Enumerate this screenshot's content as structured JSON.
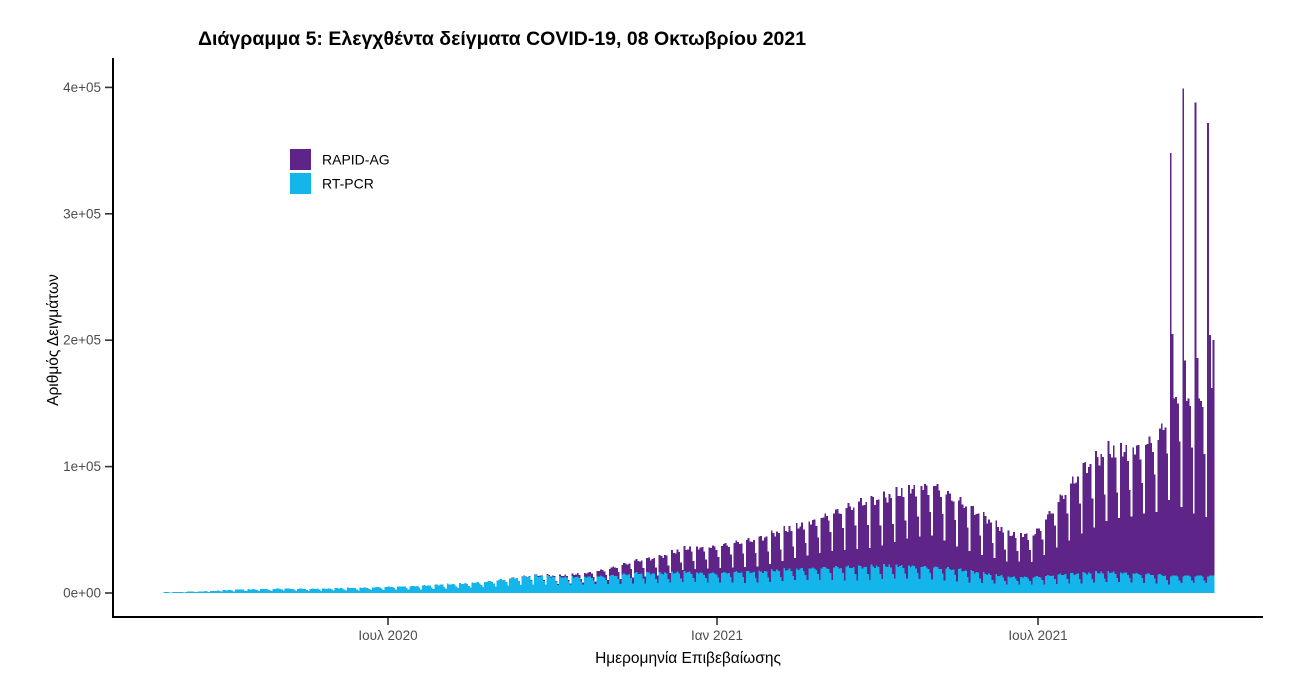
{
  "chart_data": {
    "type": "bar",
    "stacked": true,
    "title": "Διάγραμμα 5: Ελεγχθέντα δείγματα COVID-19, 08 Οκτωβρίου 2021",
    "xlabel": "Ημερομηνία Επιβεβαίωσης",
    "ylabel": "Αριθμός Δειγμάτων",
    "x_ticks": [
      "Ιουλ 2020",
      "Ιαν 2021",
      "Ιουλ 2021"
    ],
    "y_ticks": [
      "0e+00",
      "1e+05",
      "2e+05",
      "3e+05",
      "4e+05"
    ],
    "ylim": [
      0,
      400000
    ],
    "x_range": [
      "2020-02-26",
      "2021-10-07"
    ],
    "grid": false,
    "background": "#ffffff",
    "legend_position": "inside-top-left",
    "series": [
      {
        "name": "RAPID-AG",
        "color": "#5E2487"
      },
      {
        "name": "RT-PCR",
        "color": "#13B5EA"
      }
    ],
    "weekday_factors": [
      0.5,
      1.0,
      0.98,
      0.96,
      0.97,
      0.93,
      0.72
    ],
    "jitter": 0.05,
    "weekly_baseline": [
      {
        "date": "2020-02-24",
        "rt_pcr": 600,
        "rapid_ag": 0
      },
      {
        "date": "2020-03-09",
        "rt_pcr": 1000,
        "rapid_ag": 0
      },
      {
        "date": "2020-03-23",
        "rt_pcr": 1600,
        "rapid_ag": 0
      },
      {
        "date": "2020-04-06",
        "rt_pcr": 2800,
        "rapid_ag": 0
      },
      {
        "date": "2020-04-20",
        "rt_pcr": 3200,
        "rapid_ag": 0
      },
      {
        "date": "2020-05-04",
        "rt_pcr": 3600,
        "rapid_ag": 0
      },
      {
        "date": "2020-05-18",
        "rt_pcr": 3400,
        "rapid_ag": 0
      },
      {
        "date": "2020-06-01",
        "rt_pcr": 3800,
        "rapid_ag": 0
      },
      {
        "date": "2020-06-15",
        "rt_pcr": 4200,
        "rapid_ag": 0
      },
      {
        "date": "2020-06-29",
        "rt_pcr": 5000,
        "rapid_ag": 0
      },
      {
        "date": "2020-07-13",
        "rt_pcr": 5500,
        "rapid_ag": 0
      },
      {
        "date": "2020-07-27",
        "rt_pcr": 6500,
        "rapid_ag": 0
      },
      {
        "date": "2020-08-10",
        "rt_pcr": 7500,
        "rapid_ag": 0
      },
      {
        "date": "2020-08-24",
        "rt_pcr": 9000,
        "rapid_ag": 0
      },
      {
        "date": "2020-09-07",
        "rt_pcr": 12000,
        "rapid_ag": 0
      },
      {
        "date": "2020-09-21",
        "rt_pcr": 14000,
        "rapid_ag": 500
      },
      {
        "date": "2020-10-05",
        "rt_pcr": 13000,
        "rapid_ag": 1000
      },
      {
        "date": "2020-10-19",
        "rt_pcr": 13000,
        "rapid_ag": 3000
      },
      {
        "date": "2020-11-02",
        "rt_pcr": 14000,
        "rapid_ag": 6000
      },
      {
        "date": "2020-11-16",
        "rt_pcr": 16000,
        "rapid_ag": 10000
      },
      {
        "date": "2020-11-30",
        "rt_pcr": 16000,
        "rapid_ag": 13000
      },
      {
        "date": "2020-12-14",
        "rt_pcr": 17000,
        "rapid_ag": 19000
      },
      {
        "date": "2020-12-28",
        "rt_pcr": 16000,
        "rapid_ag": 21000
      },
      {
        "date": "2021-01-11",
        "rt_pcr": 17000,
        "rapid_ag": 24000
      },
      {
        "date": "2021-01-25",
        "rt_pcr": 17000,
        "rapid_ag": 27000
      },
      {
        "date": "2021-02-08",
        "rt_pcr": 19000,
        "rapid_ag": 32000
      },
      {
        "date": "2021-02-22",
        "rt_pcr": 20000,
        "rapid_ag": 37000
      },
      {
        "date": "2021-03-08",
        "rt_pcr": 21000,
        "rapid_ag": 45000
      },
      {
        "date": "2021-03-22",
        "rt_pcr": 21000,
        "rapid_ag": 52000
      },
      {
        "date": "2021-04-05",
        "rt_pcr": 22000,
        "rapid_ag": 55000
      },
      {
        "date": "2021-04-19",
        "rt_pcr": 22000,
        "rapid_ag": 62000
      },
      {
        "date": "2021-05-03",
        "rt_pcr": 21000,
        "rapid_ag": 67000
      },
      {
        "date": "2021-05-17",
        "rt_pcr": 19000,
        "rapid_ag": 56000
      },
      {
        "date": "2021-05-31",
        "rt_pcr": 16000,
        "rapid_ag": 46000
      },
      {
        "date": "2021-06-14",
        "rt_pcr": 13000,
        "rapid_ag": 35000
      },
      {
        "date": "2021-06-28",
        "rt_pcr": 13000,
        "rapid_ag": 34000
      },
      {
        "date": "2021-07-12",
        "rt_pcr": 15000,
        "rapid_ag": 60000
      },
      {
        "date": "2021-07-26",
        "rt_pcr": 16000,
        "rapid_ag": 85000
      },
      {
        "date": "2021-08-09",
        "rt_pcr": 17000,
        "rapid_ag": 98000
      },
      {
        "date": "2021-08-23",
        "rt_pcr": 16000,
        "rapid_ag": 100000
      },
      {
        "date": "2021-09-06",
        "rt_pcr": 15000,
        "rapid_ag": 112000
      },
      {
        "date": "2021-09-12",
        "rt_pcr": 14000,
        "rapid_ag": 136000
      }
    ],
    "daily_overrides": [
      {
        "date": "2021-09-13",
        "rt_pcr": 13000,
        "rapid_ag": 335000
      },
      {
        "date": "2021-09-14",
        "rt_pcr": 14000,
        "rapid_ag": 191000
      },
      {
        "date": "2021-09-15",
        "rt_pcr": 14000,
        "rapid_ag": 140000
      },
      {
        "date": "2021-09-16",
        "rt_pcr": 14000,
        "rapid_ag": 141000
      },
      {
        "date": "2021-09-17",
        "rt_pcr": 13000,
        "rapid_ag": 137000
      },
      {
        "date": "2021-09-18",
        "rt_pcr": 10000,
        "rapid_ag": 110000
      },
      {
        "date": "2021-09-19",
        "rt_pcr": 8000,
        "rapid_ag": 60000
      },
      {
        "date": "2021-09-20",
        "rt_pcr": 13000,
        "rapid_ag": 386000
      },
      {
        "date": "2021-09-21",
        "rt_pcr": 14000,
        "rapid_ag": 170000
      },
      {
        "date": "2021-09-22",
        "rt_pcr": 14000,
        "rapid_ag": 138000
      },
      {
        "date": "2021-09-23",
        "rt_pcr": 14000,
        "rapid_ag": 140000
      },
      {
        "date": "2021-09-24",
        "rt_pcr": 13000,
        "rapid_ag": 135000
      },
      {
        "date": "2021-09-25",
        "rt_pcr": 10000,
        "rapid_ag": 105000
      },
      {
        "date": "2021-09-26",
        "rt_pcr": 8000,
        "rapid_ag": 55000
      },
      {
        "date": "2021-09-27",
        "rt_pcr": 13000,
        "rapid_ag": 375000
      },
      {
        "date": "2021-09-28",
        "rt_pcr": 14000,
        "rapid_ag": 172000
      },
      {
        "date": "2021-09-29",
        "rt_pcr": 14000,
        "rapid_ag": 140000
      },
      {
        "date": "2021-09-30",
        "rt_pcr": 14000,
        "rapid_ag": 138000
      },
      {
        "date": "2021-10-01",
        "rt_pcr": 13000,
        "rapid_ag": 134000
      },
      {
        "date": "2021-10-02",
        "rt_pcr": 10000,
        "rapid_ag": 100000
      },
      {
        "date": "2021-10-03",
        "rt_pcr": 8000,
        "rapid_ag": 52000
      },
      {
        "date": "2021-10-04",
        "rt_pcr": 13000,
        "rapid_ag": 359000
      },
      {
        "date": "2021-10-05",
        "rt_pcr": 14000,
        "rapid_ag": 190000
      },
      {
        "date": "2021-10-06",
        "rt_pcr": 14000,
        "rapid_ag": 148000
      },
      {
        "date": "2021-10-07",
        "rt_pcr": 14000,
        "rapid_ag": 186000
      }
    ]
  }
}
